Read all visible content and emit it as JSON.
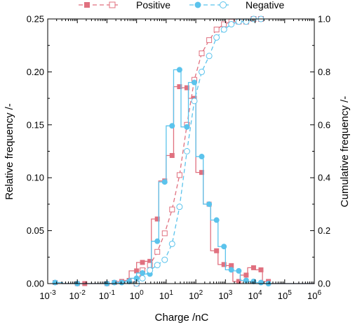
{
  "chart_data": {
    "type": "line",
    "title": "",
    "xlabel": "Charge /nC",
    "ylabel_left": "Relative frequency /-",
    "ylabel_right": "Cumulative frequency /-",
    "x_scale": "log",
    "xlim": [
      0.001,
      1000000
    ],
    "ylim_left": [
      0,
      0.25
    ],
    "ylim_right": [
      0,
      1.0
    ],
    "x_tick_labels": [
      {
        "base": "10",
        "exp": "-3"
      },
      {
        "base": "10",
        "exp": "-2"
      },
      {
        "base": "10",
        "exp": "-1"
      },
      {
        "base": "10",
        "exp": "0"
      },
      {
        "base": "10",
        "exp": "1"
      },
      {
        "base": "10",
        "exp": "2"
      },
      {
        "base": "10",
        "exp": "3"
      },
      {
        "base": "10",
        "exp": "4"
      },
      {
        "base": "10",
        "exp": "5"
      },
      {
        "base": "10",
        "exp": "6"
      }
    ],
    "y_left_tick_labels": [
      "0.00",
      "0.05",
      "0.10",
      "0.15",
      "0.20",
      "0.25"
    ],
    "y_right_tick_labels": [
      "0.0",
      "0.2",
      "0.4",
      "0.6",
      "0.8",
      "1.0"
    ],
    "legend_position": "top-center",
    "grid": false,
    "bin_edges": [
      0.00178,
      0.00316,
      0.00562,
      0.01,
      0.0178,
      0.0316,
      0.0562,
      0.1,
      0.178,
      0.316,
      0.562,
      1.0,
      1.78,
      3.16,
      5.62,
      10.0,
      17.8,
      31.6,
      56.2,
      100.0,
      178,
      316,
      562,
      1000,
      1780,
      3160,
      5620,
      10000,
      17800,
      31600,
      56200,
      100000,
      178000,
      316000,
      562000,
      1000000
    ],
    "series": [
      {
        "name": "Positive",
        "color": "#e0707f",
        "relative_frequency": {
          "x": [
            0.00178,
            0.01,
            0.0178,
            0.1,
            0.178,
            0.316,
            0.562,
            1.0,
            1.58,
            2.82,
            5.01,
            8.91,
            15.8,
            28.2,
            50.1,
            89.1,
            158,
            282,
            501,
            891,
            1580,
            2820,
            5010,
            8910,
            15800,
            28200
          ],
          "y": [
            0.001,
            0.0,
            0.0,
            0.0,
            0.001,
            0.002,
            0.003,
            0.012,
            0.02,
            0.021,
            0.061,
            0.097,
            0.121,
            0.186,
            0.185,
            0.175,
            0.105,
            0.075,
            0.031,
            0.018,
            0.017,
            0.002,
            0.008,
            0.015,
            0.013,
            0.002
          ]
        },
        "cumulative_frequency": {
          "x": [
            1.0,
            1.58,
            2.82,
            5.01,
            8.91,
            15.8,
            28.2,
            50.1,
            89.1,
            158,
            282,
            501,
            891,
            1580,
            2820,
            5010,
            8910,
            15800
          ],
          "y": [
            0.0,
            0.05,
            0.07,
            0.12,
            0.19,
            0.28,
            0.41,
            0.6,
            0.77,
            0.87,
            0.92,
            0.96,
            0.98,
            0.99,
            0.99,
            0.99,
            1.0,
            1.0
          ]
        }
      },
      {
        "name": "Negative",
        "color": "#5bc3ec",
        "relative_frequency": {
          "x": [
            0.00178,
            0.01,
            0.1,
            0.178,
            0.316,
            0.562,
            1.0,
            1.58,
            2.82,
            5.01,
            8.91,
            15.8,
            28.2,
            50.1,
            89.1,
            158,
            282,
            501,
            891,
            1580,
            2820,
            5010,
            8910,
            15800,
            28200
          ],
          "y": [
            0.001,
            0.0,
            0.0,
            0.001,
            0.001,
            0.002,
            0.005,
            0.01,
            0.009,
            0.04,
            0.096,
            0.149,
            0.202,
            0.148,
            0.19,
            0.12,
            0.075,
            0.06,
            0.035,
            0.013,
            0.012,
            0.003,
            0.002,
            0.001,
            0.0
          ]
        },
        "cumulative_frequency": {
          "x": [
            1.0,
            1.58,
            2.82,
            5.01,
            8.91,
            15.8,
            28.2,
            50.1,
            89.1,
            158,
            282,
            501,
            891,
            1580,
            2820,
            5010,
            8910,
            15800
          ],
          "y": [
            0.0,
            0.02,
            0.05,
            0.07,
            0.09,
            0.15,
            0.29,
            0.5,
            0.69,
            0.8,
            0.86,
            0.93,
            0.96,
            0.98,
            0.99,
            0.99,
            1.0,
            1.0
          ]
        }
      }
    ]
  }
}
